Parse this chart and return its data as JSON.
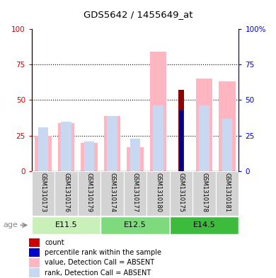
{
  "title": "GDS5642 / 1455649_at",
  "samples": [
    "GSM1310173",
    "GSM1310176",
    "GSM1310179",
    "GSM1310174",
    "GSM1310177",
    "GSM1310180",
    "GSM1310175",
    "GSM1310178",
    "GSM1310181"
  ],
  "age_groups": [
    {
      "label": "E11.5",
      "start": 0,
      "end": 3
    },
    {
      "label": "E12.5",
      "start": 3,
      "end": 6
    },
    {
      "label": "E14.5",
      "start": 6,
      "end": 9
    }
  ],
  "age_group_colors": [
    "#c8f0b8",
    "#7ddb7d",
    "#3dbb3d"
  ],
  "value_absent": [
    25,
    34,
    20,
    39,
    17,
    84,
    0,
    65,
    63
  ],
  "rank_absent": [
    31,
    35,
    21,
    39,
    23,
    46,
    0,
    46,
    37
  ],
  "count_value": [
    0,
    0,
    0,
    0,
    0,
    0,
    57,
    0,
    0
  ],
  "percentile_rank": [
    0,
    0,
    0,
    0,
    0,
    0,
    43,
    0,
    0
  ],
  "ylim": [
    0,
    100
  ],
  "yticks": [
    0,
    25,
    50,
    75,
    100
  ],
  "yticklabels_left": [
    "0",
    "25",
    "50",
    "75",
    "100"
  ],
  "yticklabels_right": [
    "0",
    "25",
    "50",
    "75",
    "100%"
  ],
  "left_tick_color": "#cc0000",
  "right_tick_color": "#0000cc",
  "color_value_absent": "#ffb6c1",
  "color_rank_absent": "#c8d8f0",
  "color_count": "#8b0000",
  "color_percentile": "#00008b",
  "legend_items": [
    {
      "color": "#cc0000",
      "label": "count"
    },
    {
      "color": "#0000cc",
      "label": "percentile rank within the sample"
    },
    {
      "color": "#ffb6c1",
      "label": "value, Detection Call = ABSENT"
    },
    {
      "color": "#c8d8f0",
      "label": "rank, Detection Call = ABSENT"
    }
  ],
  "age_label": "age",
  "bg_color": "#ffffff",
  "plot_bg": "#ffffff",
  "label_area_color": "#d3d3d3",
  "pink_bar_width": 0.72,
  "blue_bar_width": 0.45,
  "red_bar_width": 0.25,
  "darkblue_bar_width": 0.18
}
